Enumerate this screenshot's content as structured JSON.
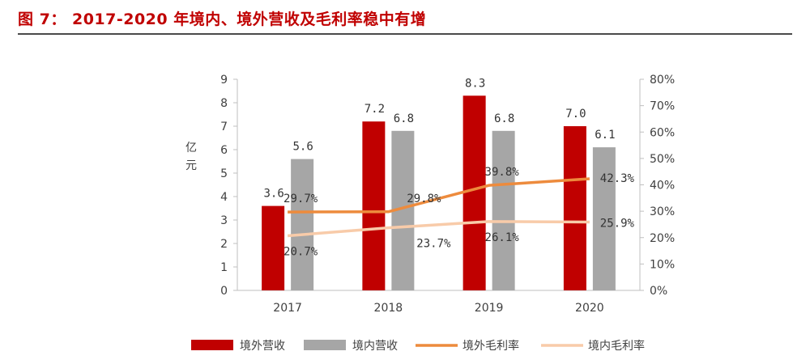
{
  "header": {
    "figure_label": "图 7：",
    "title": "2017-2020 年境内、境外营收及毛利率稳中有增"
  },
  "chart_data": {
    "type": "bar",
    "categories": [
      "2017",
      "2018",
      "2019",
      "2020"
    ],
    "ylabel": "亿元",
    "ylim": [
      0,
      9
    ],
    "yticks": [
      "0",
      "1",
      "2",
      "3",
      "4",
      "5",
      "6",
      "7",
      "8",
      "9"
    ],
    "y2lim": [
      0,
      80
    ],
    "y2ticks": [
      "0%",
      "10%",
      "20%",
      "30%",
      "40%",
      "50%",
      "60%",
      "70%",
      "80%"
    ],
    "grid": false,
    "legend_position": "bottom",
    "series": [
      {
        "name": "境外营收",
        "kind": "bar",
        "axis": "left",
        "color": "#c00000",
        "values": [
          3.6,
          7.2,
          8.3,
          7.0
        ],
        "labels": [
          "3.6",
          "7.2",
          "8.3",
          "7.0"
        ]
      },
      {
        "name": "境内营收",
        "kind": "bar",
        "axis": "left",
        "color": "#a6a6a6",
        "values": [
          5.6,
          6.8,
          6.8,
          6.1
        ],
        "labels": [
          "5.6",
          "6.8",
          "6.8",
          "6.1"
        ]
      },
      {
        "name": "境外毛利率",
        "kind": "line",
        "axis": "right",
        "color": "#ed8b3d",
        "values": [
          29.7,
          29.8,
          39.8,
          42.3
        ],
        "labels": [
          "29.7%",
          "29.8%",
          "39.8%",
          "42.3%"
        ]
      },
      {
        "name": "境内毛利率",
        "kind": "line",
        "axis": "right",
        "color": "#f8cba9",
        "values": [
          20.7,
          23.7,
          26.1,
          25.9
        ],
        "labels": [
          "20.7%",
          "23.7%",
          "26.1%",
          "25.9%"
        ]
      }
    ]
  }
}
